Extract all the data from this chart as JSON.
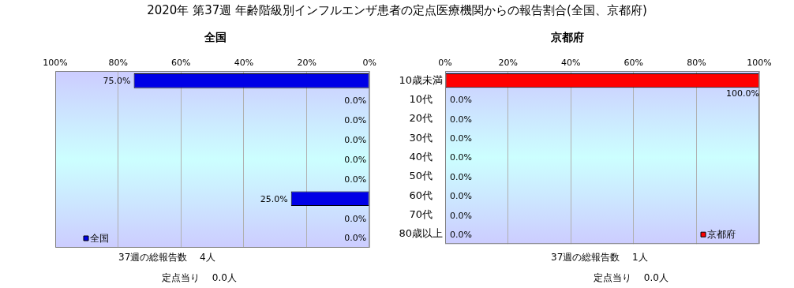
{
  "chart_data": [
    {
      "type": "bar",
      "orientation": "horizontal",
      "title": "2020年 第37週 年齢階級別インフルエンザ患者の定点医療機関からの報告割合(全国、京都府)",
      "subtitle": "全国",
      "categories": [
        null,
        null,
        null,
        null,
        null,
        null,
        null,
        null,
        null
      ],
      "series": [
        {
          "name": "全国",
          "color": "#0000e6",
          "values": [
            75,
            0,
            0,
            0,
            0,
            0,
            25,
            0,
            0
          ],
          "value_labels": [
            "75.0%",
            "0.0%",
            "0.0%",
            "0.0%",
            "0.0%",
            "0.0%",
            "25.0%",
            "0.0%",
            "0.0%"
          ]
        }
      ],
      "xlim": [
        100,
        0
      ],
      "xticks": [
        {
          "value": 100,
          "label": "100%"
        },
        {
          "value": 80,
          "label": "80%"
        },
        {
          "value": 60,
          "label": "60%"
        },
        {
          "value": 40,
          "label": "40%"
        },
        {
          "value": 20,
          "label": "20%"
        },
        {
          "value": 0,
          "label": "0%"
        }
      ],
      "grid": "x",
      "legend": "bottom left",
      "tick_labels": "x",
      "annotations": [
        "37週の総報告数　 4人",
        "定点当り　 0.0人"
      ]
    },
    {
      "type": "bar",
      "orientation": "horizontal",
      "subtitle": "京都府",
      "categories": [
        "10歳未満",
        "10代",
        "20代",
        "30代",
        "40代",
        "50代",
        "60代",
        "70代",
        "80歳以上"
      ],
      "series": [
        {
          "name": "京都府",
          "color": "#ff0000",
          "values": [
            100,
            0,
            0,
            0,
            0,
            0,
            0,
            0,
            0
          ],
          "value_labels": [
            "100.0%",
            "0.0%",
            "0.0%",
            "0.0%",
            "0.0%",
            "0.0%",
            "0.0%",
            "0.0%",
            "0.0%"
          ]
        }
      ],
      "xlim": [
        0,
        100
      ],
      "xticks": [
        {
          "value": 0,
          "label": "0%"
        },
        {
          "value": 20,
          "label": "20%"
        },
        {
          "value": 40,
          "label": "40%"
        },
        {
          "value": 60,
          "label": "60%"
        },
        {
          "value": 80,
          "label": "80%"
        },
        {
          "value": 100,
          "label": "100%"
        }
      ],
      "grid": "x",
      "legend": "bottom right",
      "annotations": [
        "37週の総報告数　 1人",
        "定点当り　 0.0人"
      ]
    }
  ]
}
